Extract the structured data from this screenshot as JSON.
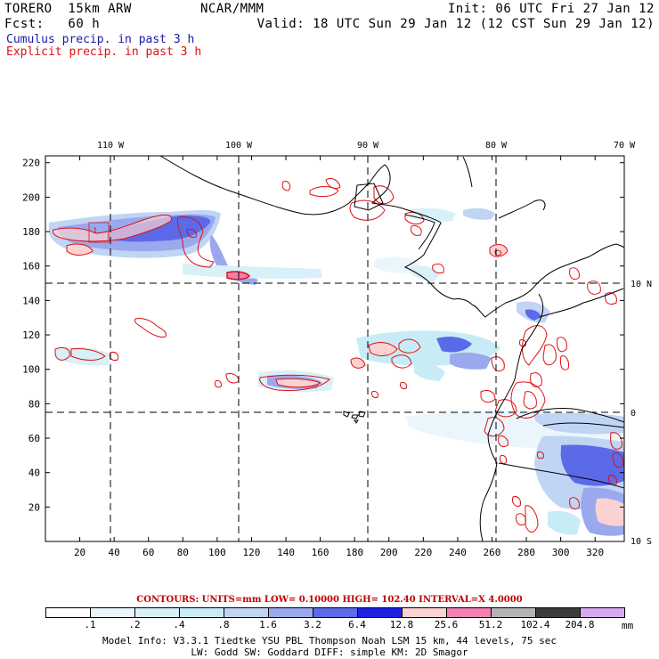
{
  "header": {
    "model": "TORERO  15km ARW",
    "org": "NCAR/MMM",
    "init": "Init: 06 UTC Fri 27 Jan 12",
    "fcst": "Fcst:   60 h",
    "valid": "Valid: 18 UTC Sun 29 Jan 12 (12 CST Sun 29 Jan 12)"
  },
  "fields": {
    "cumulus": "Cumulus precip. in past 3 h",
    "explicit": "Explicit precip. in past 3 h"
  },
  "colors": {
    "cumulus_text": "#1a1aa8",
    "explicit_text": "#e01010",
    "contour": "#e01010",
    "coast": "#000000"
  },
  "map": {
    "lon_labels": [
      "110 W",
      "100 W",
      "90 W",
      "80 W",
      "70 W"
    ],
    "lat_labels": [
      "10 N",
      "0",
      "10 S"
    ],
    "x_ticks": [
      "20",
      "40",
      "60",
      "80",
      "100",
      "120",
      "140",
      "160",
      "180",
      "200",
      "220",
      "240",
      "260",
      "280",
      "300",
      "320"
    ],
    "y_ticks": [
      "20",
      "40",
      "60",
      "80",
      "100",
      "120",
      "140",
      "160",
      "180",
      "200",
      "220"
    ],
    "box_label": "1"
  },
  "legend": {
    "contours": "CONTOURS:  UNITS=mm  LOW= 0.10000      HIGH=  102.40      INTERVAL=X  4.0000",
    "values": [
      ".1",
      ".2",
      ".4",
      ".8",
      "1.6",
      "3.2",
      "6.4",
      "12.8",
      "25.6",
      "51.2",
      "102.4",
      "204.8"
    ],
    "unit": "mm",
    "colors": [
      "#ffffff",
      "#eaf6fb",
      "#d8f0f8",
      "#c8ecf6",
      "#c0d4f4",
      "#9aa8ee",
      "#5a6ae8",
      "#2020e0",
      "#fad2d2",
      "#f080b0",
      "#b4b4b4",
      "#3c3c3c",
      "#d8a8f0"
    ]
  },
  "info": {
    "line1": "Model Info: V3.3.1    Tiedtke YSU PBL   Thompson     Noah LSM  15 km,   44 levels,   75 sec",
    "line2": "LW: Godd SW: Goddard DIFF: simple KM: 2D Smagor"
  }
}
